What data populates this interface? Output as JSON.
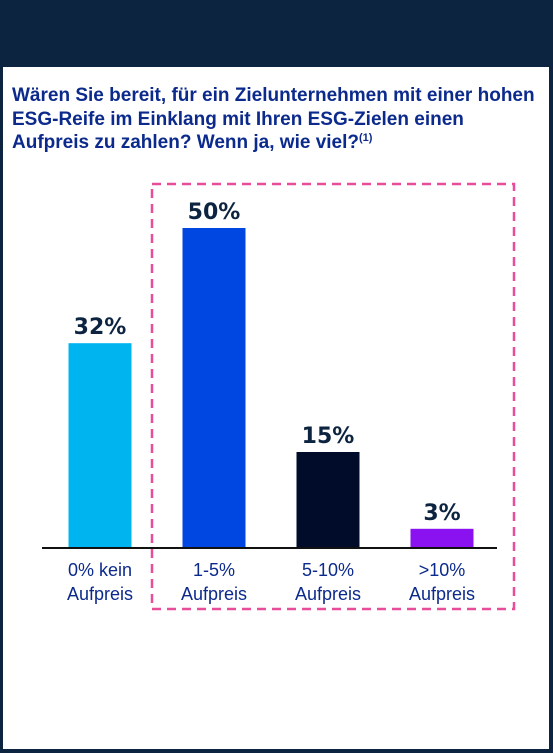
{
  "title": {
    "text": "Wären Sie bereit, für ein Zielunternehmen mit einer hohen ESG-Reife im Einklang mit Ihren ESG-Zielen einen Aufpreis zu zahlen? Wenn ja, wie viel?",
    "footnote_marker": "(1)"
  },
  "chart_data": {
    "type": "bar",
    "categories": [
      "0% kein Aufpreis",
      "1-5% Aufpreis",
      "5-10% Aufpreis",
      ">10% Aufpreis"
    ],
    "category_lines": [
      [
        "0% kein",
        "Aufpreis"
      ],
      [
        "1-5%",
        "Aufpreis"
      ],
      [
        "5-10%",
        "Aufpreis"
      ],
      [
        ">10%",
        "Aufpreis"
      ]
    ],
    "values": [
      32,
      50,
      15,
      3
    ],
    "value_labels": [
      "32%",
      "50%",
      "15%",
      "3%"
    ],
    "colors": [
      "#00b4f0",
      "#0046e0",
      "#000c2a",
      "#8a12f0"
    ],
    "ylim": [
      0,
      50
    ],
    "grid": false,
    "highlight_box": {
      "categories": [
        "1-5% Aufpreis",
        "5-10% Aufpreis",
        ">10% Aufpreis"
      ],
      "color": "#e84d9a",
      "style": "dashed"
    },
    "title": "Wären Sie bereit, für ein Zielunternehmen mit einer hohen ESG-Reife im Einklang mit Ihren ESG-Zielen einen Aufpreis zu zahlen? Wenn ja, wie viel?",
    "xlabel": "",
    "ylabel": ""
  }
}
